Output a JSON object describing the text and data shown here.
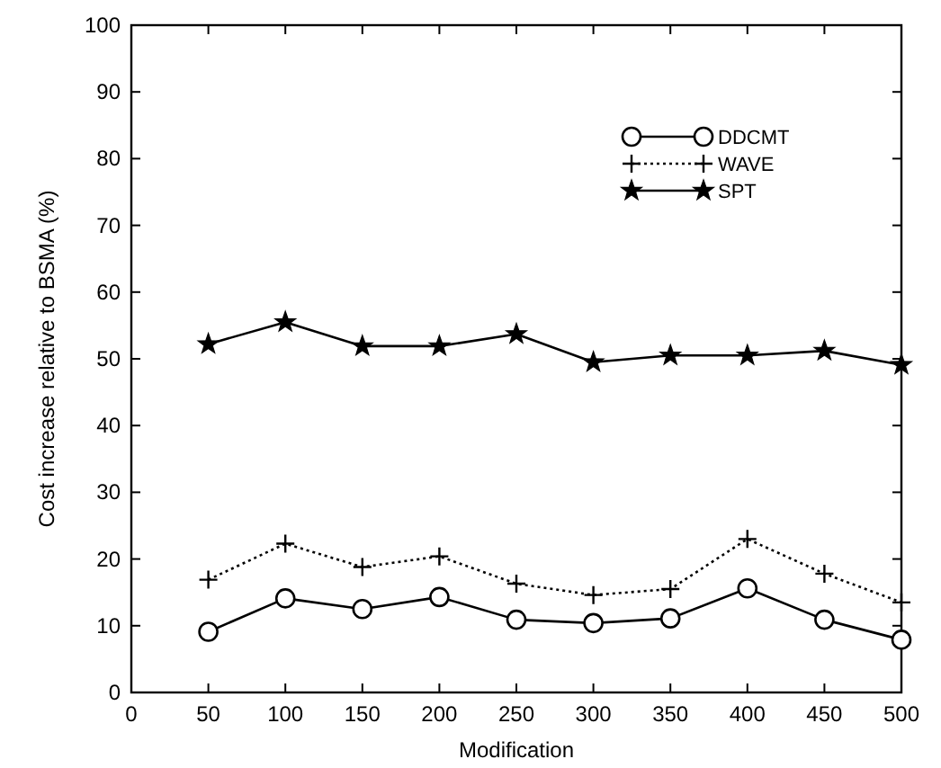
{
  "chart_data": {
    "type": "line",
    "xlabel": "Modification",
    "ylabel": "Cost increase relative to BSMA (%)",
    "x": [
      50,
      100,
      150,
      200,
      250,
      300,
      350,
      400,
      450,
      500
    ],
    "series": [
      {
        "name": "DDCMT",
        "color": "#000000",
        "marker": "circle",
        "line_style": "solid",
        "values": [
          9.1,
          14.1,
          12.5,
          14.3,
          10.9,
          10.4,
          11.1,
          15.6,
          10.9,
          7.9
        ]
      },
      {
        "name": "WAVE",
        "color": "#000000",
        "marker": "cross",
        "line_style": "dotted",
        "values": [
          16.9,
          22.3,
          18.8,
          20.4,
          16.3,
          14.6,
          15.5,
          23,
          17.8,
          13.5
        ]
      },
      {
        "name": "SPT",
        "color": "#000000",
        "marker": "star",
        "line_style": "solid",
        "values": [
          52.2,
          55.5,
          51.9,
          51.9,
          53.7,
          49.5,
          50.5,
          50.5,
          51.2,
          49.1
        ]
      }
    ],
    "xlim": [
      0,
      500
    ],
    "xticks": [
      0,
      50,
      100,
      150,
      200,
      250,
      300,
      350,
      400,
      450,
      500
    ],
    "ylim": [
      0,
      100
    ],
    "yticks": [
      0,
      10,
      20,
      30,
      40,
      50,
      60,
      70,
      80,
      90,
      100
    ],
    "grid": false,
    "legend": "top right"
  }
}
